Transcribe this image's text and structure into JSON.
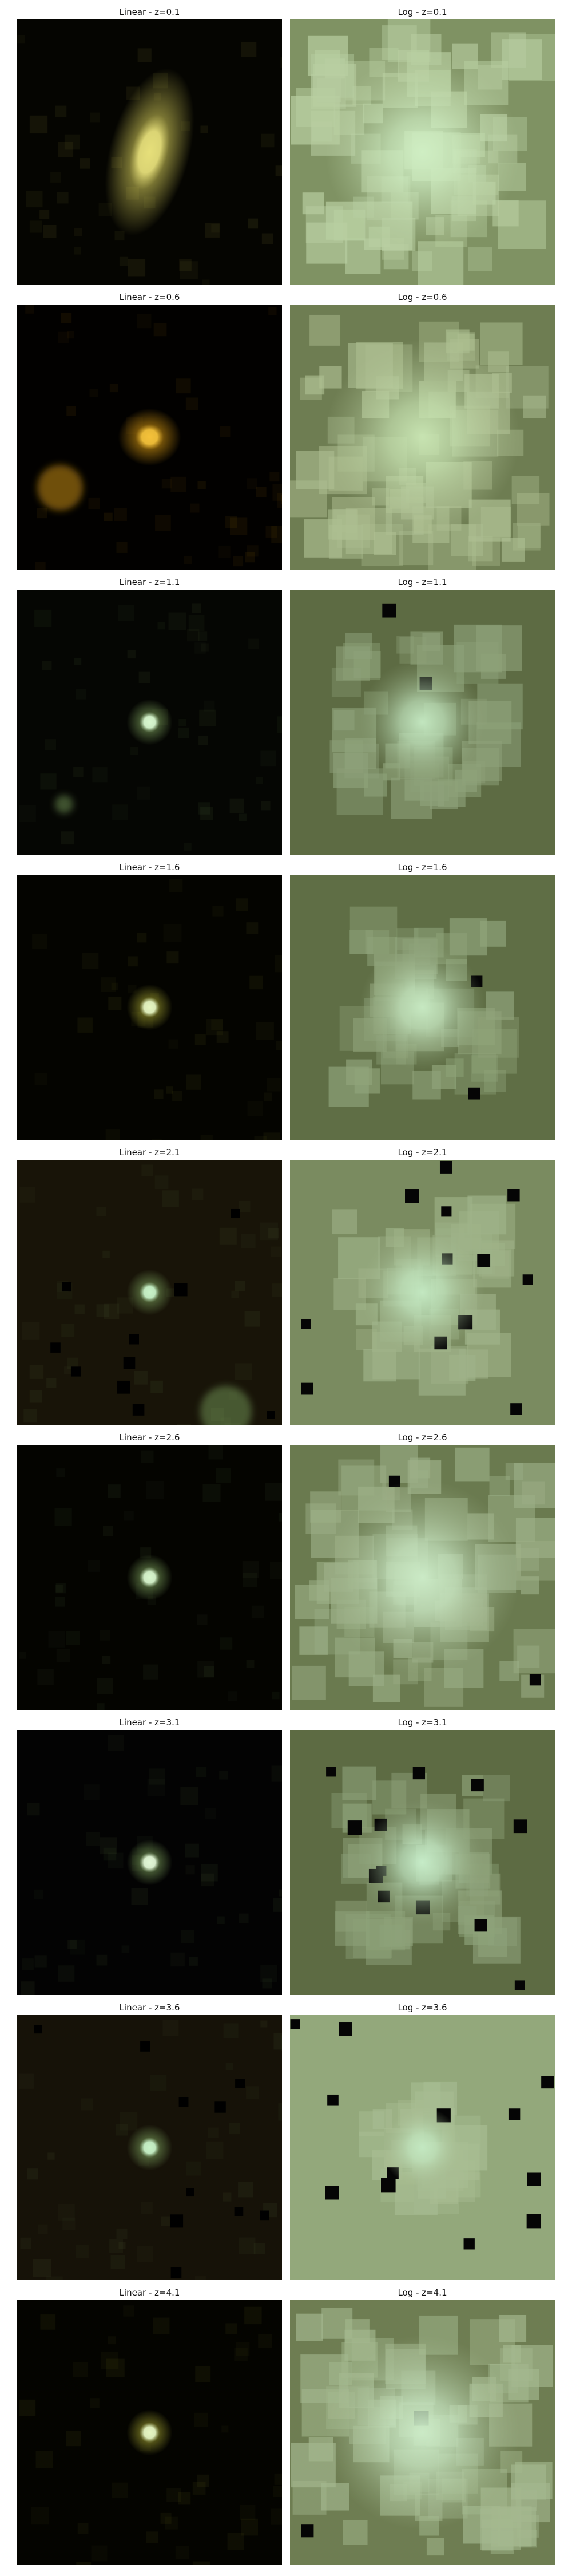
{
  "figure": {
    "rows": [
      {
        "z": "0.1",
        "linear_title": "Linear - z=0.1",
        "log_title": "Log - z=0.1",
        "linear": {
          "bg": "#050501",
          "glow": "#d4cc5a",
          "core": "#e6df7a",
          "shape": "elongated",
          "blob": "none"
        },
        "log": {
          "bg": "#7f9263",
          "patch": "#b9cfa2",
          "core": "#cfeec3",
          "shape": "wide"
        }
      },
      {
        "z": "0.6",
        "linear_title": "Linear - z=0.6",
        "log_title": "Log - z=0.6",
        "linear": {
          "bg": "#020100",
          "glow": "#c88e10",
          "core": "#f5c23a",
          "shape": "round",
          "blob": "lower-left"
        },
        "log": {
          "bg": "#6e7d52",
          "patch": "#aebf92",
          "core": "#c7e3b1",
          "shape": "wide"
        }
      },
      {
        "z": "1.1",
        "linear_title": "Linear - z=1.1",
        "log_title": "Log - z=1.1",
        "linear": {
          "bg": "#050603",
          "glow": "#6f8f52",
          "core": "#d8f8cf",
          "shape": "compact",
          "blob": "small-lower-left"
        },
        "log": {
          "bg": "#5d6b43",
          "patch": "#8ea27a",
          "core": "#c2e6bf",
          "shape": "medium"
        }
      },
      {
        "z": "1.6",
        "linear_title": "Linear - z=1.6",
        "log_title": "Log - z=1.6",
        "linear": {
          "bg": "#040400",
          "glow": "#8e8e2a",
          "core": "#e6f6c2",
          "shape": "compact",
          "blob": "none"
        },
        "log": {
          "bg": "#5f6e45",
          "patch": "#90a47b",
          "core": "#c6e8c1",
          "shape": "medium"
        }
      },
      {
        "z": "2.1",
        "linear_title": "Linear - z=2.1",
        "log_title": "Log - z=2.1",
        "linear": {
          "bg": "#181408",
          "glow": "#6f8f52",
          "core": "#c8f3c8",
          "shape": "compact",
          "blob": "bottom-right"
        },
        "log": {
          "bg": "#7a8b60",
          "patch": "#9fb389",
          "core": "#c3e8c1",
          "shape": "medium"
        }
      },
      {
        "z": "2.6",
        "linear_title": "Linear - z=2.6",
        "log_title": "Log - z=2.6",
        "linear": {
          "bg": "#040400",
          "glow": "#6f8f52",
          "core": "#d8f6cd",
          "shape": "compact",
          "blob": "none"
        },
        "log": {
          "bg": "#6a7a4f",
          "patch": "#9db088",
          "core": "#cbeac6",
          "shape": "wide"
        }
      },
      {
        "z": "3.1",
        "linear_title": "Linear - z=3.1",
        "log_title": "Log - z=3.1",
        "linear": {
          "bg": "#030303",
          "glow": "#6f8f52",
          "core": "#e2f8d6",
          "shape": "compact",
          "blob": "none"
        },
        "log": {
          "bg": "#5d6b43",
          "patch": "#8ea27a",
          "core": "#c6ecc8",
          "shape": "medium"
        }
      },
      {
        "z": "3.6",
        "linear_title": "Linear - z=3.6",
        "log_title": "Log - z=3.6",
        "linear": {
          "bg": "#161208",
          "glow": "#6f8f52",
          "core": "#c8f3c8",
          "shape": "compact",
          "blob": "none"
        },
        "log": {
          "bg": "#93a87b",
          "patch": "#a8bd93",
          "core": "#c3e8c1",
          "shape": "small"
        }
      },
      {
        "z": "4.1",
        "linear_title": "Linear - z=4.1",
        "log_title": "Log - z=4.1",
        "linear": {
          "bg": "#040400",
          "glow": "#8e8e2a",
          "core": "#e6f6c2",
          "shape": "compact",
          "blob": "none"
        },
        "log": {
          "bg": "#6e7d52",
          "patch": "#a4b88f",
          "core": "#cbeac6",
          "shape": "wide"
        }
      }
    ]
  }
}
